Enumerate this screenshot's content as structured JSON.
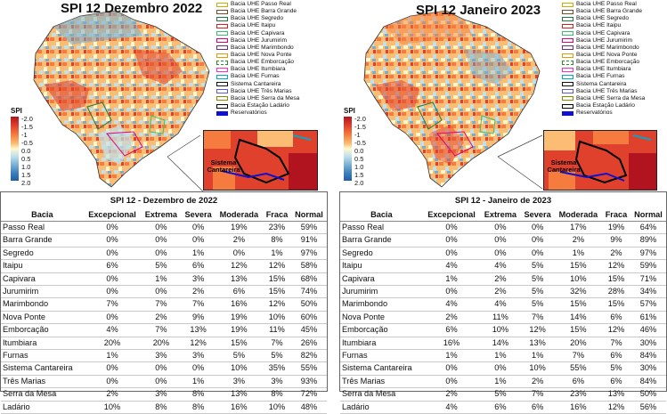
{
  "colors": {
    "dry_extreme": "#b1141e",
    "dry_moderate": "#f57c3e",
    "near_normal": "#fff8cf",
    "wet_moderate": "#74aed2",
    "wet_extreme": "#1f5ea4"
  },
  "legend_items": [
    {
      "label": "Bacia UHE Passo Real",
      "color": "#c7b000",
      "style": "solid"
    },
    {
      "label": "Bacia UHE Barra Grande",
      "color": "#7a4b1f",
      "style": "solid"
    },
    {
      "label": "Bacia UHE Segredo",
      "color": "#1d7a3d",
      "style": "solid"
    },
    {
      "label": "Bacia UHE Itaipu",
      "color": "#d42020",
      "style": "solid"
    },
    {
      "label": "Bacia UHE Capivara",
      "color": "#3bbf6a",
      "style": "solid"
    },
    {
      "label": "Bacia UHE Jurumirim",
      "color": "#e0007a",
      "style": "solid"
    },
    {
      "label": "Bacia UHE Marimbondo",
      "color": "#6a2e86",
      "style": "solid"
    },
    {
      "label": "Bacia UHE Nova Ponte",
      "color": "#e89a00",
      "style": "solid"
    },
    {
      "label": "Bacia UHE Emborcação",
      "color": "#2a8f2a",
      "style": "dashed"
    },
    {
      "label": "Bacia UHE Itumbiara",
      "color": "#ff2ad0",
      "style": "solid"
    },
    {
      "label": "Bacia UHE Furnas",
      "color": "#00a8c8",
      "style": "solid"
    },
    {
      "label": "Sistema Cantareira",
      "color": "#111111",
      "style": "solid"
    },
    {
      "label": "Bacia UHE Três Marias",
      "color": "#5b5bd6",
      "style": "solid"
    },
    {
      "label": "Bacia UHE Serra da Mesa",
      "color": "#8a8a00",
      "style": "solid"
    },
    {
      "label": "Bacia Estação Ladário",
      "color": "#000000",
      "style": "solid"
    },
    {
      "label": "Reservatórios",
      "color": "#1010d0",
      "style": "fill"
    }
  ],
  "colorbar": {
    "title": "SPI",
    "ticks": [
      "-2.0",
      "-1.5",
      "-1",
      "-0.5",
      "0.0",
      "0.5",
      "1.0",
      "1.5",
      "2.0"
    ]
  },
  "inset_label": "Sistema\nCantareira",
  "columns": [
    "Bacia",
    "Excepcional",
    "Extrema",
    "Severa",
    "Moderada",
    "Fraca",
    "Normal"
  ],
  "panels": [
    {
      "map_title": "SPI 12 Dezembro 2022",
      "table_title": "SPI 12 - Dezembro de 2022",
      "rows": [
        [
          "Passo Real",
          "0%",
          "0%",
          "0%",
          "19%",
          "23%",
          "59%"
        ],
        [
          "Barra Grande",
          "0%",
          "0%",
          "0%",
          "2%",
          "8%",
          "91%"
        ],
        [
          "Segredo",
          "0%",
          "0%",
          "1%",
          "0%",
          "1%",
          "97%"
        ],
        [
          "Itaipu",
          "6%",
          "5%",
          "6%",
          "12%",
          "12%",
          "58%"
        ],
        [
          "Capivara",
          "0%",
          "1%",
          "3%",
          "13%",
          "15%",
          "68%"
        ],
        [
          "Jurumirim",
          "0%",
          "0%",
          "2%",
          "6%",
          "15%",
          "74%"
        ],
        [
          "Marimbondo",
          "7%",
          "7%",
          "7%",
          "16%",
          "12%",
          "50%"
        ],
        [
          "Nova Ponte",
          "0%",
          "2%",
          "9%",
          "19%",
          "10%",
          "60%"
        ],
        [
          "Emborcação",
          "4%",
          "7%",
          "13%",
          "19%",
          "11%",
          "45%"
        ],
        [
          "Itumbiara",
          "20%",
          "20%",
          "12%",
          "15%",
          "7%",
          "26%"
        ],
        [
          "Furnas",
          "1%",
          "3%",
          "3%",
          "5%",
          "5%",
          "82%"
        ],
        [
          "Sistema Cantareira",
          "0%",
          "0%",
          "0%",
          "10%",
          "35%",
          "55%"
        ],
        [
          "Três Marias",
          "0%",
          "0%",
          "1%",
          "3%",
          "3%",
          "93%"
        ],
        [
          "Serra da Mesa",
          "2%",
          "3%",
          "8%",
          "13%",
          "8%",
          "72%"
        ],
        [
          "Ladário",
          "10%",
          "8%",
          "8%",
          "16%",
          "10%",
          "48%"
        ]
      ]
    },
    {
      "map_title": "SPI 12  Janeiro 2023",
      "table_title": "SPI 12 - Janeiro de 2023",
      "rows": [
        [
          "Passo Real",
          "0%",
          "0%",
          "0%",
          "17%",
          "19%",
          "64%"
        ],
        [
          "Barra Grande",
          "0%",
          "0%",
          "0%",
          "2%",
          "9%",
          "89%"
        ],
        [
          "Segredo",
          "0%",
          "0%",
          "0%",
          "1%",
          "2%",
          "97%"
        ],
        [
          "Itaipu",
          "4%",
          "4%",
          "5%",
          "15%",
          "12%",
          "59%"
        ],
        [
          "Capivara",
          "1%",
          "2%",
          "5%",
          "10%",
          "15%",
          "71%"
        ],
        [
          "Jurumirim",
          "0%",
          "2%",
          "5%",
          "32%",
          "28%",
          "34%"
        ],
        [
          "Marimbondo",
          "4%",
          "4%",
          "5%",
          "15%",
          "15%",
          "57%"
        ],
        [
          "Nova Ponte",
          "2%",
          "11%",
          "7%",
          "14%",
          "6%",
          "61%"
        ],
        [
          "Emborcação",
          "6%",
          "10%",
          "12%",
          "15%",
          "12%",
          "46%"
        ],
        [
          "Itumbiara",
          "16%",
          "14%",
          "13%",
          "20%",
          "7%",
          "30%"
        ],
        [
          "Furnas",
          "1%",
          "1%",
          "1%",
          "7%",
          "6%",
          "84%"
        ],
        [
          "Sistema Cantareira",
          "0%",
          "0%",
          "10%",
          "55%",
          "5%",
          "30%"
        ],
        [
          "Três Marias",
          "0%",
          "1%",
          "2%",
          "6%",
          "6%",
          "84%"
        ],
        [
          "Serra da Mesa",
          "2%",
          "5%",
          "7%",
          "23%",
          "13%",
          "50%"
        ],
        [
          "Ladário",
          "4%",
          "6%",
          "6%",
          "16%",
          "12%",
          "56%"
        ]
      ]
    }
  ]
}
